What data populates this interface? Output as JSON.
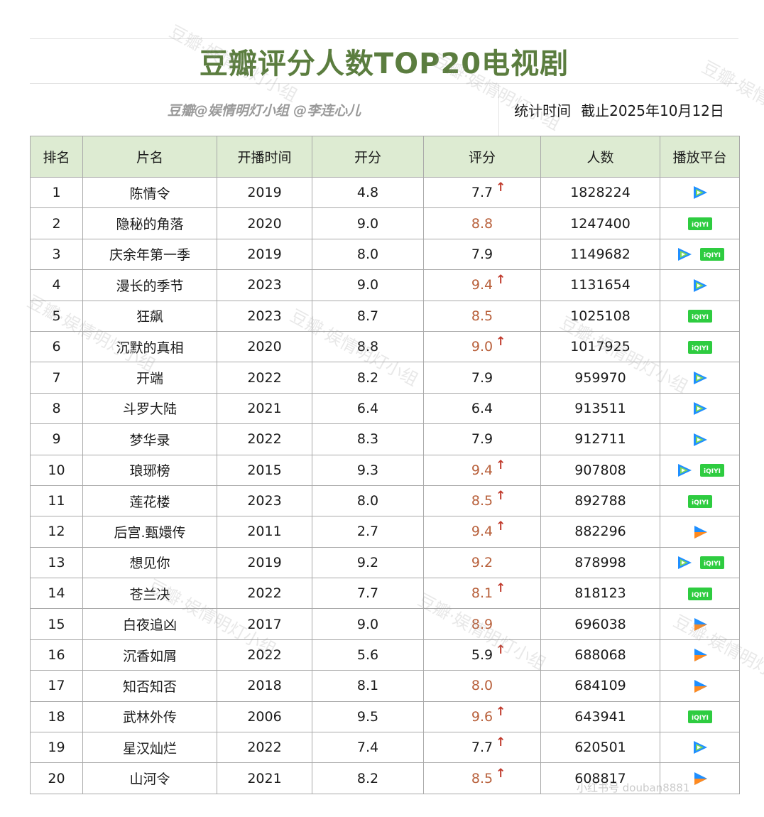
{
  "header": {
    "title": "豆瓣评分人数TOP20电视剧",
    "credit": "豆瓣@娱情明灯小组 @李连心儿",
    "stat_label": "统计时间",
    "stat_value": "截止2025年10月12日"
  },
  "colors": {
    "title_green": "#5b7d3f",
    "header_bg": "#ddebd2",
    "highlight_score": "#b8603b",
    "up_arrow": "#c0392b",
    "iqiyi_green": "#2ecc40",
    "tencent_blue": "#1f8fff",
    "youku_orange": "#ff8a1f"
  },
  "chart_data": {
    "type": "table",
    "columns": [
      "排名",
      "片名",
      "开播时间",
      "开分",
      "评分",
      "人数",
      "播放平台"
    ],
    "rows": [
      {
        "rank": "1",
        "name": "陈情令",
        "year": "2019",
        "open": "4.8",
        "score": "7.7",
        "up": true,
        "hi": false,
        "count": "1828224",
        "platforms": [
          "tencent-video"
        ]
      },
      {
        "rank": "2",
        "name": "隐秘的角落",
        "year": "2020",
        "open": "9.0",
        "score": "8.8",
        "up": false,
        "hi": true,
        "count": "1247400",
        "platforms": [
          "iqiyi"
        ]
      },
      {
        "rank": "3",
        "name": "庆余年第一季",
        "year": "2019",
        "open": "8.0",
        "score": "7.9",
        "up": false,
        "hi": false,
        "count": "1149682",
        "platforms": [
          "tencent-video",
          "iqiyi"
        ]
      },
      {
        "rank": "4",
        "name": "漫长的季节",
        "year": "2023",
        "open": "9.0",
        "score": "9.4",
        "up": true,
        "hi": true,
        "count": "1131654",
        "platforms": [
          "tencent-video"
        ]
      },
      {
        "rank": "5",
        "name": "狂飙",
        "year": "2023",
        "open": "8.7",
        "score": "8.5",
        "up": false,
        "hi": true,
        "count": "1025108",
        "platforms": [
          "iqiyi"
        ]
      },
      {
        "rank": "6",
        "name": "沉默的真相",
        "year": "2020",
        "open": "8.8",
        "score": "9.0",
        "up": true,
        "hi": true,
        "count": "1017925",
        "platforms": [
          "iqiyi"
        ]
      },
      {
        "rank": "7",
        "name": "开端",
        "year": "2022",
        "open": "8.2",
        "score": "7.9",
        "up": false,
        "hi": false,
        "count": "959970",
        "platforms": [
          "tencent-video"
        ]
      },
      {
        "rank": "8",
        "name": "斗罗大陆",
        "year": "2021",
        "open": "6.4",
        "score": "6.4",
        "up": false,
        "hi": false,
        "count": "913511",
        "platforms": [
          "tencent-video"
        ]
      },
      {
        "rank": "9",
        "name": "梦华录",
        "year": "2022",
        "open": "8.3",
        "score": "7.9",
        "up": false,
        "hi": false,
        "count": "912711",
        "platforms": [
          "tencent-video"
        ]
      },
      {
        "rank": "10",
        "name": "琅琊榜",
        "year": "2015",
        "open": "9.3",
        "score": "9.4",
        "up": true,
        "hi": true,
        "count": "907808",
        "platforms": [
          "tencent-video",
          "iqiyi"
        ]
      },
      {
        "rank": "11",
        "name": "莲花楼",
        "year": "2023",
        "open": "8.0",
        "score": "8.5",
        "up": true,
        "hi": true,
        "count": "892788",
        "platforms": [
          "iqiyi"
        ]
      },
      {
        "rank": "12",
        "name": "后宫.甄嬛传",
        "year": "2011",
        "open": "2.7",
        "score": "9.4",
        "up": true,
        "hi": true,
        "count": "882296",
        "platforms": [
          "youku"
        ]
      },
      {
        "rank": "13",
        "name": "想见你",
        "year": "2019",
        "open": "9.2",
        "score": "9.2",
        "up": false,
        "hi": true,
        "count": "878998",
        "platforms": [
          "tencent-video",
          "iqiyi"
        ]
      },
      {
        "rank": "14",
        "name": "苍兰决",
        "year": "2022",
        "open": "7.7",
        "score": "8.1",
        "up": true,
        "hi": true,
        "count": "818123",
        "platforms": [
          "iqiyi"
        ]
      },
      {
        "rank": "15",
        "name": "白夜追凶",
        "year": "2017",
        "open": "9.0",
        "score": "8.9",
        "up": false,
        "hi": true,
        "count": "696038",
        "platforms": [
          "youku"
        ]
      },
      {
        "rank": "16",
        "name": "沉香如屑",
        "year": "2022",
        "open": "5.6",
        "score": "5.9",
        "up": true,
        "hi": false,
        "count": "688068",
        "platforms": [
          "youku"
        ]
      },
      {
        "rank": "17",
        "name": "知否知否",
        "year": "2018",
        "open": "8.1",
        "score": "8.0",
        "up": false,
        "hi": true,
        "count": "684109",
        "platforms": [
          "youku"
        ]
      },
      {
        "rank": "18",
        "name": "武林外传",
        "year": "2006",
        "open": "9.5",
        "score": "9.6",
        "up": true,
        "hi": true,
        "count": "643941",
        "platforms": [
          "iqiyi"
        ]
      },
      {
        "rank": "19",
        "name": "星汉灿烂",
        "year": "2022",
        "open": "7.4",
        "score": "7.7",
        "up": true,
        "hi": false,
        "count": "620501",
        "platforms": [
          "tencent-video"
        ]
      },
      {
        "rank": "20",
        "name": "山河令",
        "year": "2021",
        "open": "8.2",
        "score": "8.5",
        "up": true,
        "hi": true,
        "count": "608817",
        "platforms": [
          "youku"
        ]
      }
    ]
  },
  "watermarks": [
    "豆瓣·娱情明灯小组",
    "豆瓣·娱情明灯小组",
    "豆瓣·娱情明灯小组",
    "豆瓣·娱情明灯小组",
    "豆瓣·娱情明灯小组"
  ],
  "footer_watermark": "小红书号 douban8881"
}
